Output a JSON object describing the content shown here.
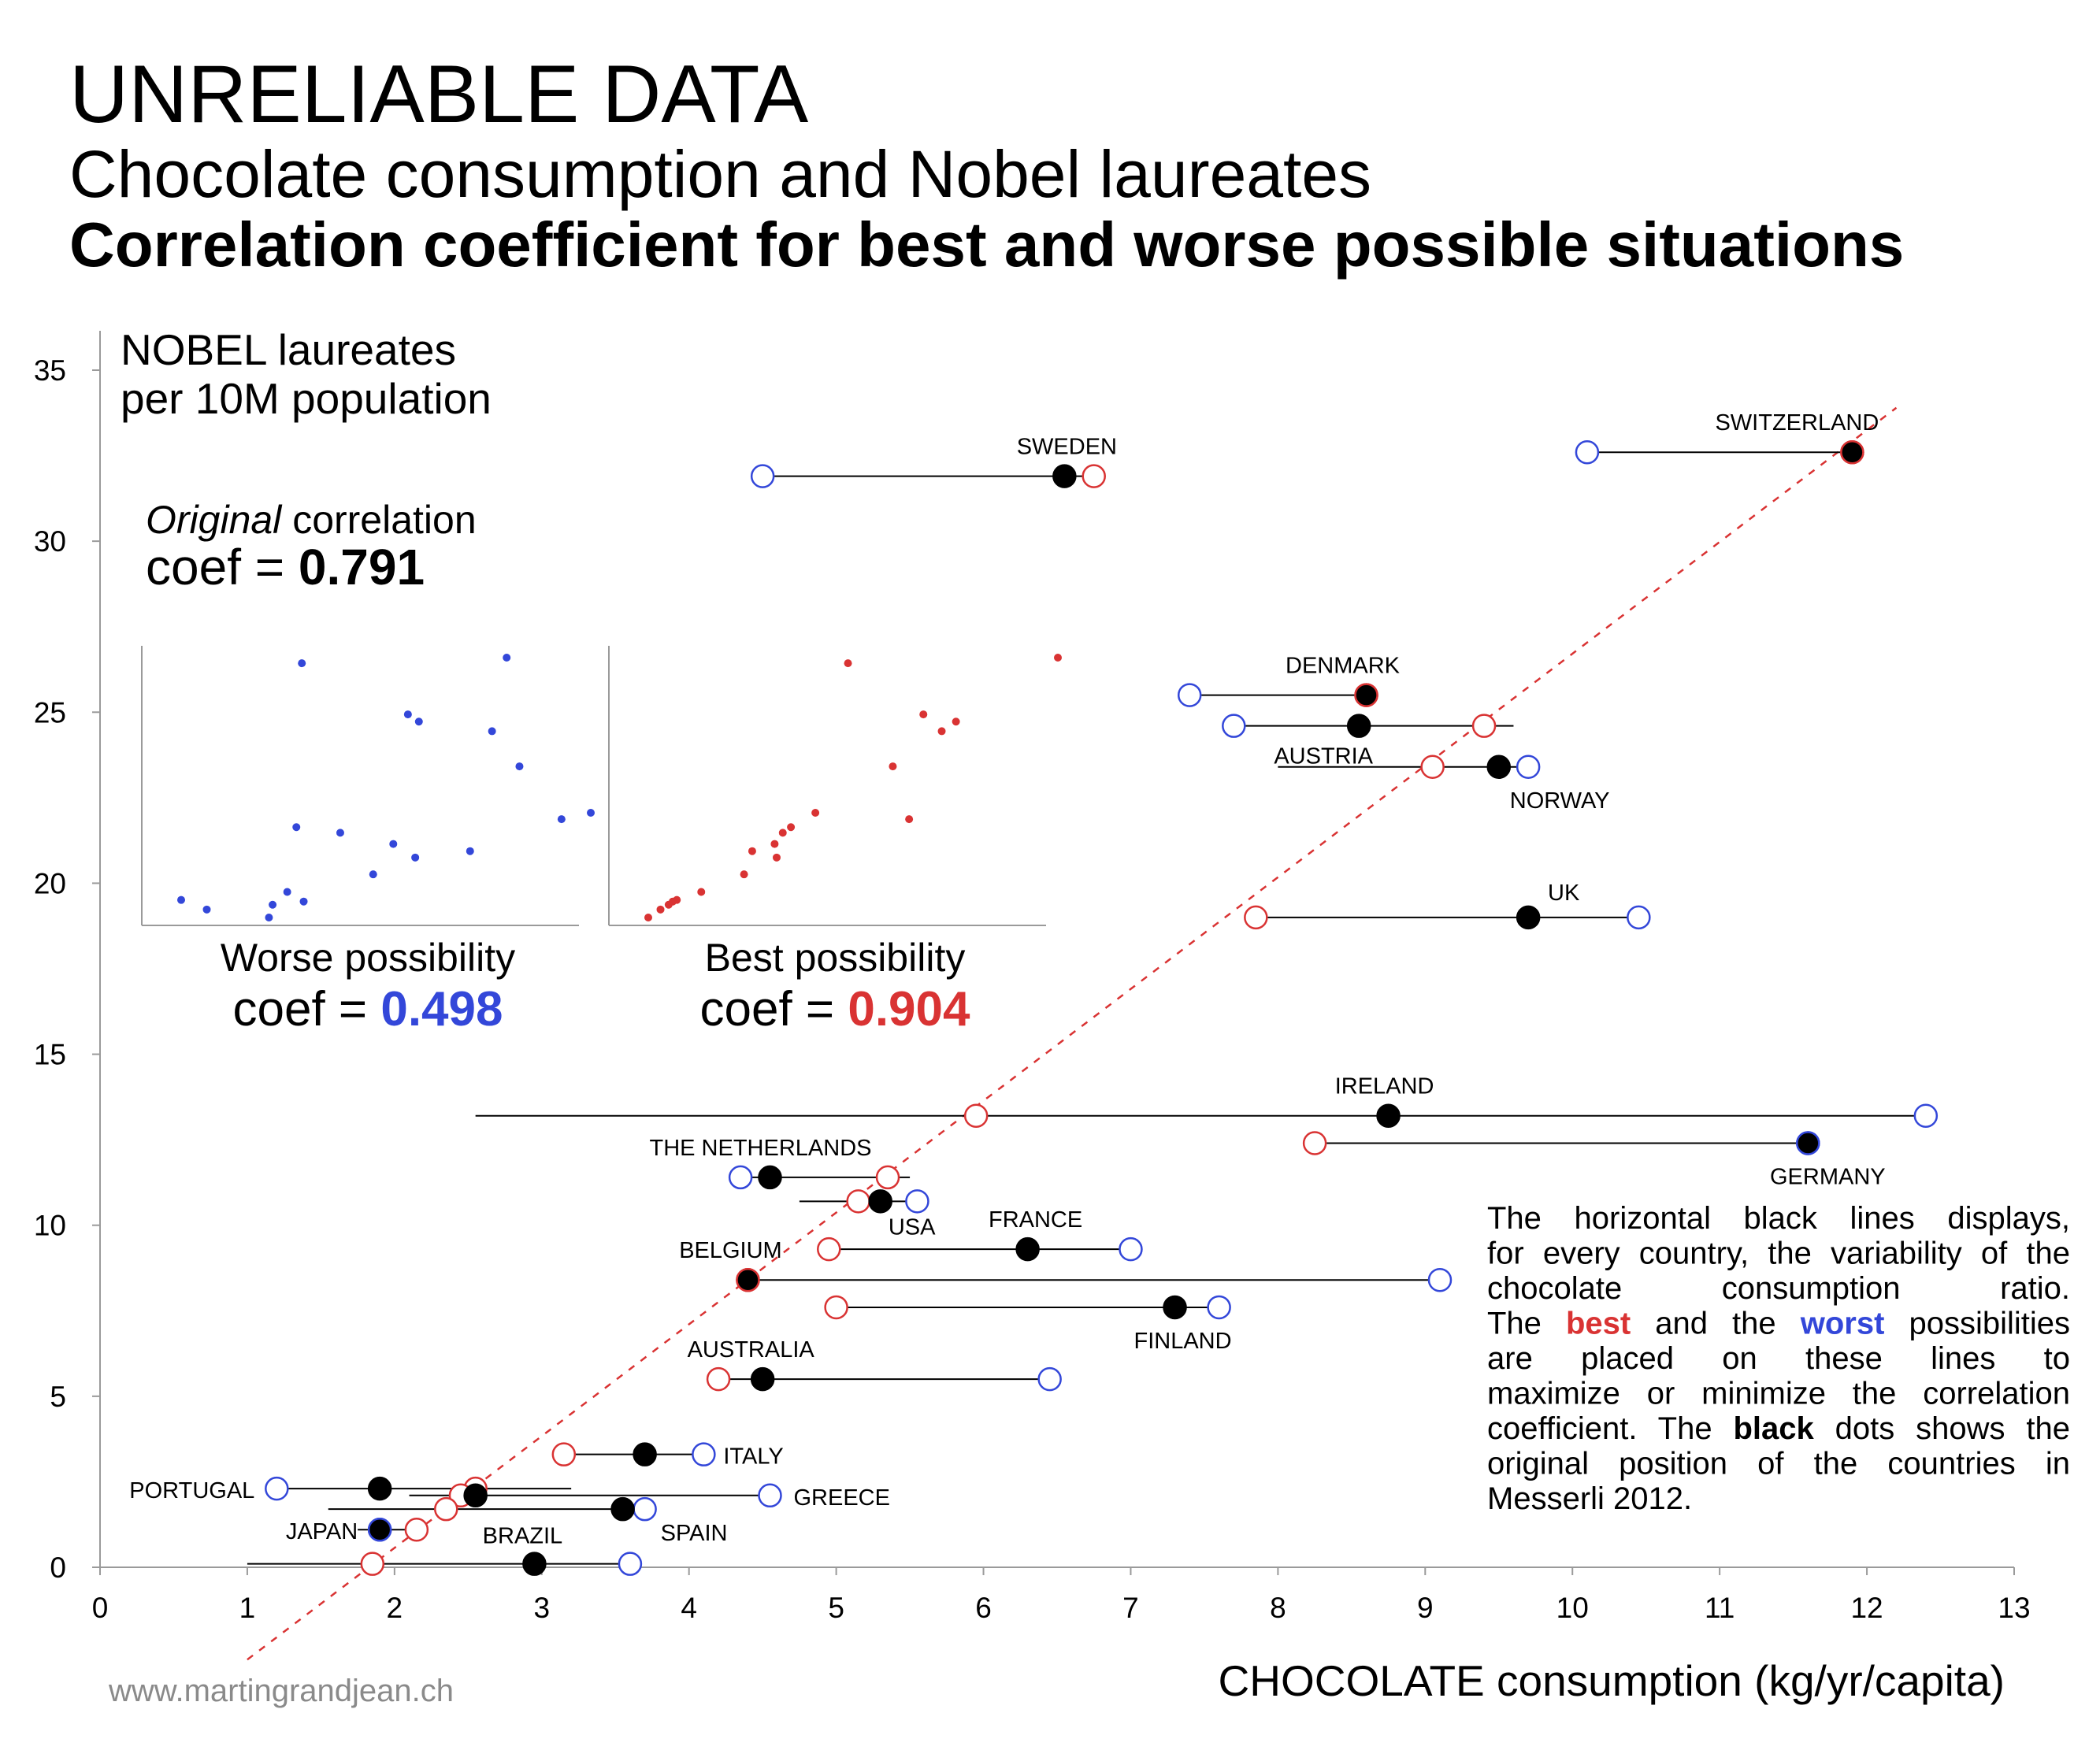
{
  "title": "UNRELIABLE DATA",
  "subtitle": "Chocolate consumption and Nobel laureates",
  "subtitle2": "Correlation coefficient for best and worse possible situations",
  "colors": {
    "best": "#d93333",
    "worst": "#3347d9",
    "original": "#000000"
  },
  "chart_data": {
    "type": "scatter",
    "title": "UNRELIABLE DATA",
    "ylabel_lines": [
      "NOBEL laureates",
      "per 10M population"
    ],
    "xlabel": "CHOCOLATE consumption (kg/yr/capita)",
    "xlim": [
      0,
      13
    ],
    "ylim": [
      0,
      35
    ],
    "xticks": [
      "0",
      "1",
      "2",
      "3",
      "4",
      "5",
      "6",
      "7",
      "8",
      "9",
      "10",
      "11",
      "12",
      "13"
    ],
    "yticks": [
      "0",
      "5",
      "10",
      "15",
      "20",
      "25",
      "30",
      "35"
    ],
    "grid": false,
    "legend": "none",
    "trendline": {
      "style": "dashed",
      "color": "#d93333",
      "from": [
        1.0,
        -2.7
      ],
      "to": [
        12.2,
        33.9
      ]
    },
    "countries": [
      {
        "name": "SWITZERLAND",
        "y": 32.6,
        "range": [
          10.1,
          11.9
        ],
        "orig": 11.9,
        "best": 11.9,
        "worst": 10.1
      },
      {
        "name": "SWEDEN",
        "y": 31.9,
        "range": [
          4.5,
          6.75
        ],
        "orig": 6.55,
        "best": 6.75,
        "worst": 4.5
      },
      {
        "name": "DENMARK",
        "y": 25.5,
        "range": [
          7.4,
          8.6
        ],
        "orig": 8.6,
        "best": 8.6,
        "worst": 7.4
      },
      {
        "name": "AUSTRIA",
        "y": 24.6,
        "range": [
          7.7,
          9.6
        ],
        "orig": 8.55,
        "best": 9.4,
        "worst": 7.7
      },
      {
        "name": "NORWAY",
        "y": 23.4,
        "range": [
          8.0,
          9.7
        ],
        "orig": 9.5,
        "best": 9.05,
        "worst": 9.7
      },
      {
        "name": "UK",
        "y": 19.0,
        "range": [
          7.85,
          10.45
        ],
        "orig": 9.7,
        "best": 7.85,
        "worst": 10.45
      },
      {
        "name": "IRELAND",
        "y": 13.2,
        "range": [
          2.55,
          12.4
        ],
        "orig": 8.75,
        "best": 5.95,
        "worst": 12.4
      },
      {
        "name": "GERMANY",
        "y": 12.4,
        "range": [
          8.25,
          11.6
        ],
        "orig": 11.6,
        "best": 8.25,
        "worst": 11.6
      },
      {
        "name": "THE NETHERLANDS",
        "y": 11.4,
        "range": [
          4.35,
          5.5
        ],
        "orig": 4.55,
        "best": 5.35,
        "worst": 4.35
      },
      {
        "name": "USA",
        "y": 10.7,
        "range": [
          4.75,
          5.55
        ],
        "orig": 5.3,
        "best": 5.15,
        "worst": 5.55
      },
      {
        "name": "FRANCE",
        "y": 9.3,
        "range": [
          4.95,
          7.0
        ],
        "orig": 6.3,
        "best": 4.95,
        "worst": 7.0
      },
      {
        "name": "BELGIUM",
        "y": 8.4,
        "range": [
          4.4,
          9.1
        ],
        "orig": 4.4,
        "best": 4.4,
        "worst": 9.1
      },
      {
        "name": "FINLAND",
        "y": 7.6,
        "range": [
          5.0,
          7.6
        ],
        "orig": 7.3,
        "best": 5.0,
        "worst": 7.6
      },
      {
        "name": "AUSTRALIA",
        "y": 5.5,
        "range": [
          4.2,
          6.45
        ],
        "orig": 4.5,
        "best": 4.2,
        "worst": 6.45
      },
      {
        "name": "ITALY",
        "y": 3.3,
        "range": [
          3.15,
          4.1
        ],
        "orig": 3.7,
        "best": 3.15,
        "worst": 4.1
      },
      {
        "name": "PORTUGAL",
        "y": 2.3,
        "range": [
          1.2,
          3.2
        ],
        "orig": 1.9,
        "best": 2.55,
        "worst": 1.2
      },
      {
        "name": "GREECE",
        "y": 2.1,
        "range": [
          2.1,
          4.55
        ],
        "orig": 2.55,
        "best": 2.45,
        "worst": 4.55
      },
      {
        "name": "SPAIN",
        "y": 1.7,
        "range": [
          1.55,
          3.7
        ],
        "orig": 3.55,
        "best": 2.35,
        "worst": 3.7
      },
      {
        "name": "JAPAN",
        "y": 1.1,
        "range": [
          1.75,
          2.15
        ],
        "orig": 1.9,
        "best": 2.15,
        "worst": 1.9
      },
      {
        "name": "BRAZIL",
        "y": 0.1,
        "range": [
          1.0,
          3.6
        ],
        "orig": 2.95,
        "best": 1.85,
        "worst": 3.6
      }
    ],
    "original_label_prefix": "Original",
    "original_label_rest": " correlation",
    "original_coef_prefix": "coef = ",
    "original_coef": "0.791",
    "insets": [
      {
        "label": "Worse possibility",
        "coef_prefix": "coef = ",
        "coef": "0.498",
        "color": "#3347d9"
      },
      {
        "label": "Best possibility",
        "coef_prefix": "coef = ",
        "coef": "0.904",
        "color": "#d93333"
      }
    ]
  },
  "note": {
    "lines": [
      [
        {
          "t": "The horizontal black lines displays,"
        }
      ],
      [
        {
          "t": "for every country, the variability of the"
        }
      ],
      [
        {
          "t": "chocolate consumption ratio."
        }
      ],
      [
        {
          "t": "The "
        },
        {
          "t": "best",
          "c": "best"
        },
        {
          "t": " and the "
        },
        {
          "t": "worst",
          "c": "worst"
        },
        {
          "t": " possibilities"
        }
      ],
      [
        {
          "t": "are placed on these lines to"
        }
      ],
      [
        {
          "t": "maximize or minimize the correlation"
        }
      ],
      [
        {
          "t": "coefficient. The "
        },
        {
          "t": "black",
          "c": "bold"
        },
        {
          "t": " dots shows the"
        }
      ],
      [
        {
          "t": "original position of the countries in"
        }
      ],
      [
        {
          "t": "Messerli 2012."
        }
      ]
    ]
  },
  "credit": "www.martingrandjean.ch"
}
